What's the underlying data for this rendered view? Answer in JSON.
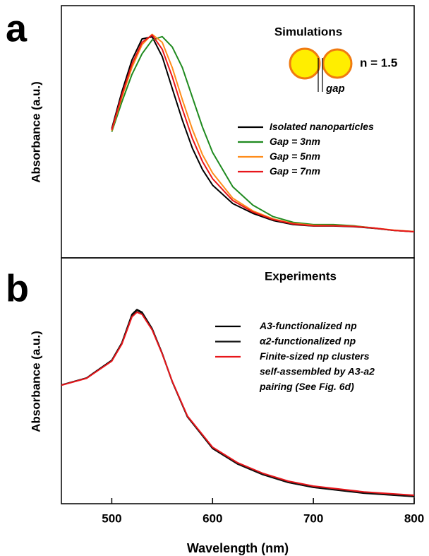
{
  "chart_data": [
    {
      "type": "line",
      "panel_label": "a",
      "title": "Simulations",
      "ylabel": "Absorbance (a.u.)",
      "annotations": [
        "n = 1.5",
        "gap"
      ],
      "x": [
        500,
        510,
        520,
        530,
        540,
        550,
        560,
        570,
        580,
        590,
        600,
        620,
        640,
        660,
        680,
        700,
        720,
        740,
        760,
        780,
        800
      ],
      "xlim": [
        450,
        800
      ],
      "ylim": [
        0,
        1.1
      ],
      "series": [
        {
          "name": "Isolated nanoparticles",
          "color": "#000000",
          "values": [
            0.564,
            0.724,
            0.863,
            0.955,
            0.964,
            0.878,
            0.739,
            0.601,
            0.478,
            0.385,
            0.317,
            0.237,
            0.194,
            0.163,
            0.145,
            0.139,
            0.139,
            0.136,
            0.129,
            0.12,
            0.114
          ]
        },
        {
          "name": "Gap = 3nm",
          "color": "#1f8a1f",
          "values": [
            0.55,
            0.68,
            0.8,
            0.89,
            0.95,
            0.965,
            0.92,
            0.83,
            0.7,
            0.57,
            0.46,
            0.31,
            0.23,
            0.18,
            0.155,
            0.145,
            0.145,
            0.14,
            0.13,
            0.12,
            0.115
          ]
        },
        {
          "name": "Gap = 5nm",
          "color": "#ff8c1a",
          "values": [
            0.555,
            0.7,
            0.83,
            0.93,
            0.975,
            0.94,
            0.83,
            0.69,
            0.56,
            0.45,
            0.37,
            0.26,
            0.205,
            0.17,
            0.15,
            0.142,
            0.141,
            0.138,
            0.13,
            0.121,
            0.115
          ]
        },
        {
          "name": "Gap = 7nm",
          "color": "#e8161b",
          "values": [
            0.558,
            0.71,
            0.845,
            0.94,
            0.972,
            0.91,
            0.79,
            0.65,
            0.52,
            0.42,
            0.345,
            0.25,
            0.2,
            0.167,
            0.148,
            0.14,
            0.14,
            0.137,
            0.13,
            0.12,
            0.114
          ]
        }
      ]
    },
    {
      "type": "line",
      "panel_label": "b",
      "title": "Experiments",
      "ylabel": "Absorbance (a.u.)",
      "xlabel": "Wavelength (nm)",
      "x": [
        450,
        475,
        500,
        510,
        520,
        525,
        530,
        540,
        550,
        560,
        575,
        600,
        625,
        650,
        675,
        700,
        750,
        800
      ],
      "xlim": [
        450,
        800
      ],
      "ylim": [
        0,
        1.1
      ],
      "xticks": [
        500,
        600,
        700,
        800
      ],
      "series": [
        {
          "name": "A3-functionalized np",
          "color": "#000000",
          "values": [
            0.531,
            0.563,
            0.642,
            0.72,
            0.847,
            0.869,
            0.857,
            0.784,
            0.673,
            0.547,
            0.389,
            0.247,
            0.177,
            0.13,
            0.095,
            0.073,
            0.047,
            0.032
          ]
        },
        {
          "name": "α2-functionalized np",
          "color": "#111111",
          "values": [
            0.531,
            0.562,
            0.64,
            0.718,
            0.843,
            0.865,
            0.853,
            0.781,
            0.671,
            0.546,
            0.389,
            0.248,
            0.178,
            0.131,
            0.096,
            0.074,
            0.048,
            0.033
          ]
        },
        {
          "name": "Finite-sized np clusters\nself-assembled by A3-a2\npairing (See Fig. 6d)",
          "color": "#e8161b",
          "values": [
            0.53,
            0.561,
            0.638,
            0.714,
            0.836,
            0.857,
            0.847,
            0.778,
            0.67,
            0.548,
            0.393,
            0.253,
            0.183,
            0.136,
            0.101,
            0.079,
            0.053,
            0.038
          ]
        }
      ]
    }
  ]
}
